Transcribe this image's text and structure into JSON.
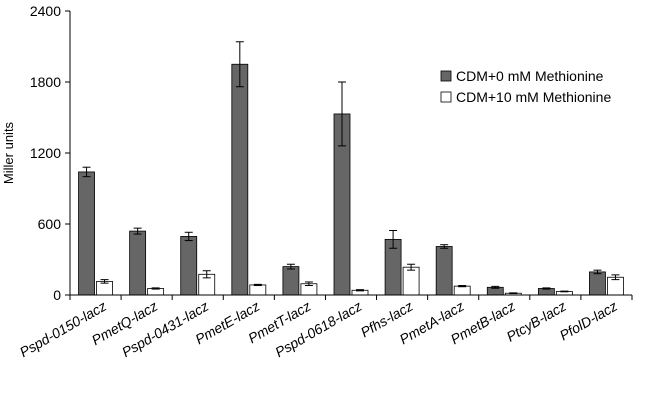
{
  "chart_data": {
    "type": "bar",
    "title": "",
    "xlabel": "",
    "ylabel": "Miller units",
    "ylim": [
      0,
      2400
    ],
    "yticks": [
      0,
      600,
      1200,
      1800,
      2400
    ],
    "grid": false,
    "legend_position": "right",
    "categories": [
      "Pspd-0150-lacz",
      "PmetQ-lacz",
      "Pspd-0431-lacz",
      "PmetE-lacz",
      "PmetT-lacz",
      "Pspd-0618-lacz",
      "Pfhs-lacz",
      "PmetA-lacz",
      "PmetB-lacz",
      "PtcyB-lacz",
      "PfolD-lacz"
    ],
    "series": [
      {
        "name": "CDM+0 mM Methionine",
        "color": "#666666",
        "values": [
          1040,
          540,
          495,
          1950,
          240,
          1530,
          470,
          410,
          65,
          55,
          195
        ],
        "errors": [
          40,
          25,
          35,
          190,
          20,
          270,
          75,
          15,
          8,
          5,
          15
        ]
      },
      {
        "name": "CDM+10 mM Methionine",
        "color": "#ffffff",
        "values": [
          115,
          55,
          175,
          85,
          95,
          40,
          235,
          75,
          15,
          30,
          150
        ],
        "errors": [
          15,
          5,
          30,
          5,
          15,
          5,
          25,
          5,
          3,
          3,
          20
        ]
      }
    ]
  }
}
